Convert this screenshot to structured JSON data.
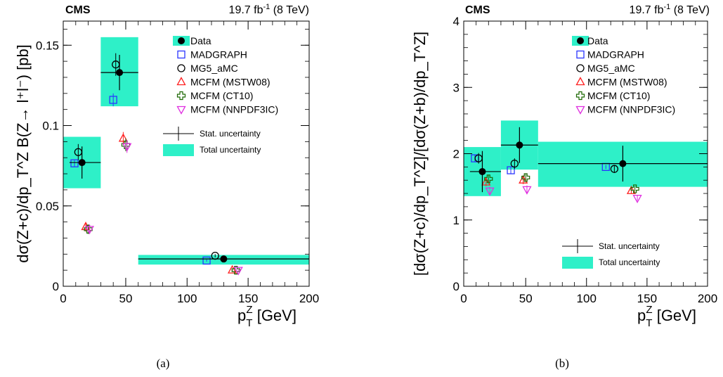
{
  "colors": {
    "total_unc": "#2ef0c8",
    "madgraph": "#2b35ff",
    "mg5": "#000000",
    "mstw": "#ff2020",
    "ct10": "#1a6600",
    "nnpdf": "#e030e0"
  },
  "chart_data": [
    {
      "type": "scatter",
      "header": {
        "experiment": "CMS",
        "lumi": "19.7 fb",
        "lumi_sup": "-1",
        "energy": "(8 TeV)"
      },
      "xlabel": {
        "main": "p",
        "sub": "T",
        "sup": "Z",
        "rest": " [GeV]"
      },
      "ylabel_text": "dσ(Z+c)/dp_T^Z B(Z→ l⁺l⁻) [pb]",
      "xlim": [
        0,
        200
      ],
      "ylim": [
        0,
        0.165
      ],
      "x_break": {
        "left": [
          0,
          60
        ],
        "right": [
          60,
          200
        ],
        "left_frac": 0.305
      },
      "xticks": [
        {
          "v": 0,
          "t": "0"
        },
        {
          "v": 50,
          "t": "50"
        },
        {
          "v": 100,
          "t": "100"
        },
        {
          "v": 150,
          "t": "150"
        },
        {
          "v": 200,
          "t": "200"
        }
      ],
      "yticks": [
        {
          "v": 0,
          "t": "0"
        },
        {
          "v": 0.05,
          "t": "0.05"
        },
        {
          "v": 0.1,
          "t": "0.1"
        },
        {
          "v": 0.15,
          "t": "0.15"
        }
      ],
      "caption": "(a)",
      "legend": {
        "placement": "top-right",
        "entries": [
          "Data",
          "MADGRAPH",
          "MG5_aMC",
          "MCFM (MSTW08)",
          "MCFM (CT10)",
          "MCFM (NNPDF3IC)"
        ],
        "stat": "Stat. uncertainty",
        "total": "Total uncertainty"
      },
      "data": [
        {
          "x": 15,
          "xerr": [
            10,
            15
          ],
          "y": 0.077,
          "stat": 0.01,
          "band": [
            0.061,
            0.093
          ],
          "band_x": [
            0,
            30
          ]
        },
        {
          "x": 45,
          "xerr": [
            15,
            15
          ],
          "y": 0.133,
          "stat": 0.011,
          "band": [
            0.112,
            0.155
          ],
          "band_x": [
            30,
            60
          ]
        },
        {
          "x": 130,
          "xerr": [
            70,
            70
          ],
          "y": 0.017,
          "stat": 0.0008,
          "band": [
            0.0135,
            0.0195
          ],
          "band_x": [
            60,
            200
          ]
        }
      ],
      "series": [
        {
          "name": "MADGRAPH",
          "marker": "square",
          "points": [
            {
              "x": 9,
              "y": 0.0765,
              "e": 0.002
            },
            {
              "x": 40,
              "y": 0.116,
              "e": 0.004
            },
            {
              "x": 116,
              "y": 0.016,
              "e": 0.0007
            }
          ]
        },
        {
          "name": "MG5_aMC",
          "marker": "circle",
          "points": [
            {
              "x": 12,
              "y": 0.0835,
              "e": 0.005
            },
            {
              "x": 42,
              "y": 0.138,
              "e": 0.007
            },
            {
              "x": 123,
              "y": 0.019,
              "e": 0.001
            }
          ]
        },
        {
          "name": "MCFM (MSTW08)",
          "marker": "triangle-up",
          "points": [
            {
              "x": 18,
              "y": 0.037,
              "e": 0.003
            },
            {
              "x": 48,
              "y": 0.092,
              "e": 0.004
            },
            {
              "x": 137,
              "y": 0.01,
              "e": 0.001
            }
          ]
        },
        {
          "name": "MCFM (CT10)",
          "marker": "cross",
          "points": [
            {
              "x": 20,
              "y": 0.0355,
              "e": 0.003
            },
            {
              "x": 50,
              "y": 0.088,
              "e": 0.004
            },
            {
              "x": 140,
              "y": 0.01,
              "e": 0.001
            }
          ]
        },
        {
          "name": "MCFM (NNPDF3IC)",
          "marker": "triangle-down",
          "points": [
            {
              "x": 21,
              "y": 0.0355,
              "e": 0.003
            },
            {
              "x": 51,
              "y": 0.087,
              "e": 0.004
            },
            {
              "x": 142,
              "y": 0.01,
              "e": 0.001
            }
          ]
        }
      ]
    },
    {
      "type": "scatter",
      "header": {
        "experiment": "CMS",
        "lumi": "19.7 fb",
        "lumi_sup": "-1",
        "energy": "(8 TeV)"
      },
      "xlabel": {
        "main": "p",
        "sub": "T",
        "sup": "Z",
        "rest": " [GeV]"
      },
      "ylabel_text": "[dσ(Z+c)/dp_T^Z]/[dσ(Z+b)/dp_T^Z]",
      "xlim": [
        0,
        200
      ],
      "ylim": [
        0,
        4
      ],
      "x_break": {
        "left": [
          0,
          60
        ],
        "right": [
          60,
          200
        ],
        "left_frac": 0.305
      },
      "xticks": [
        {
          "v": 0,
          "t": "0"
        },
        {
          "v": 50,
          "t": "50"
        },
        {
          "v": 100,
          "t": "100"
        },
        {
          "v": 150,
          "t": "150"
        },
        {
          "v": 200,
          "t": "200"
        }
      ],
      "yticks": [
        {
          "v": 0,
          "t": "0"
        },
        {
          "v": 1,
          "t": "1"
        },
        {
          "v": 2,
          "t": "2"
        },
        {
          "v": 3,
          "t": "3"
        },
        {
          "v": 4,
          "t": "4"
        }
      ],
      "caption": "(b)",
      "legend": {
        "placement": "top-right",
        "entries": [
          "Data",
          "MADGRAPH",
          "MG5_aMC",
          "MCFM (MSTW08)",
          "MCFM (CT10)",
          "MCFM (NNPDF3IC)"
        ],
        "stat": "Stat. uncertainty",
        "total": "Total uncertainty"
      },
      "data": [
        {
          "x": 15,
          "xerr": [
            10,
            15
          ],
          "y": 1.73,
          "stat": 0.31,
          "band": [
            1.36,
            2.1
          ],
          "band_x": [
            0,
            30
          ]
        },
        {
          "x": 45,
          "xerr": [
            15,
            15
          ],
          "y": 2.13,
          "stat": 0.27,
          "band": [
            1.76,
            2.5
          ],
          "band_x": [
            30,
            60
          ]
        },
        {
          "x": 130,
          "xerr": [
            70,
            70
          ],
          "y": 1.85,
          "stat": 0.27,
          "band": [
            1.5,
            2.18
          ],
          "band_x": [
            60,
            200
          ]
        }
      ],
      "series": [
        {
          "name": "MADGRAPH",
          "marker": "square",
          "points": [
            {
              "x": 9,
              "y": 1.93,
              "e": 0.05
            },
            {
              "x": 38,
              "y": 1.75,
              "e": 0.05
            },
            {
              "x": 116,
              "y": 1.8,
              "e": 0.03
            }
          ]
        },
        {
          "name": "MG5_aMC",
          "marker": "circle",
          "points": [
            {
              "x": 12,
              "y": 1.93,
              "e": 0.08
            },
            {
              "x": 41,
              "y": 1.85,
              "e": 0.08
            },
            {
              "x": 123,
              "y": 1.77,
              "e": 0.06
            }
          ]
        },
        {
          "name": "MCFM (MSTW08)",
          "marker": "triangle-up",
          "points": [
            {
              "x": 18,
              "y": 1.57,
              "e": 0.06
            },
            {
              "x": 48,
              "y": 1.6,
              "e": 0.06
            },
            {
              "x": 137,
              "y": 1.44,
              "e": 0.04
            }
          ]
        },
        {
          "name": "MCFM (CT10)",
          "marker": "cross",
          "points": [
            {
              "x": 20,
              "y": 1.62,
              "e": 0.06
            },
            {
              "x": 50,
              "y": 1.64,
              "e": 0.06
            },
            {
              "x": 140,
              "y": 1.47,
              "e": 0.04
            }
          ]
        },
        {
          "name": "MCFM (NNPDF3IC)",
          "marker": "triangle-down",
          "points": [
            {
              "x": 21,
              "y": 1.44,
              "e": 0.06
            },
            {
              "x": 51,
              "y": 1.46,
              "e": 0.06
            },
            {
              "x": 142,
              "y": 1.33,
              "e": 0.04
            }
          ]
        }
      ]
    }
  ]
}
